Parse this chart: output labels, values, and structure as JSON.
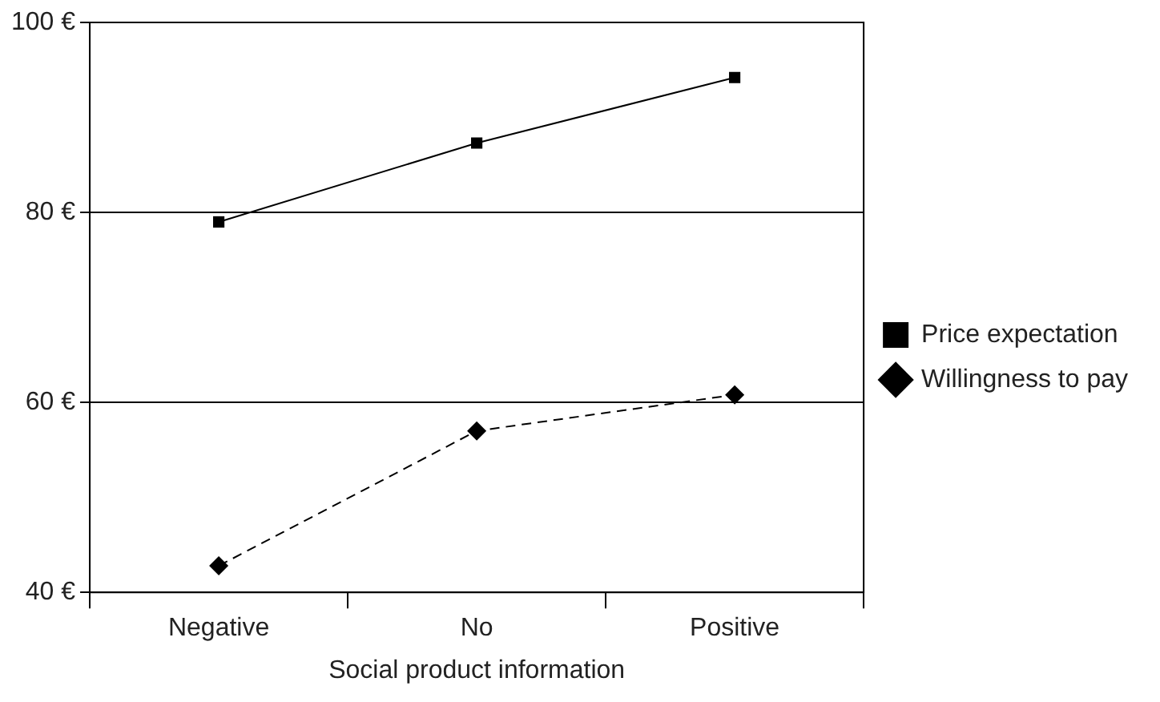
{
  "chart_data": {
    "type": "line",
    "xlabel": "Social product information",
    "categories": [
      "Negative",
      "No",
      "Positive"
    ],
    "series": [
      {
        "name": "Price expectation",
        "color": "#000000",
        "values": [
          79.0,
          87.3,
          94.2
        ],
        "marker": "square",
        "line_style": "solid"
      },
      {
        "name": "Willingness to pay",
        "color": "#000000",
        "values": [
          42.8,
          57.0,
          60.8
        ],
        "marker": "diamond",
        "line_style": "dashed"
      }
    ],
    "ylim": [
      40,
      100
    ],
    "yticks": [
      {
        "value": 40,
        "label": "40 €"
      },
      {
        "value": 60,
        "label": "60 €"
      },
      {
        "value": 80,
        "label": "80 €"
      },
      {
        "value": 100,
        "label": "100 €"
      }
    ],
    "grid": "y",
    "legend": "right"
  }
}
